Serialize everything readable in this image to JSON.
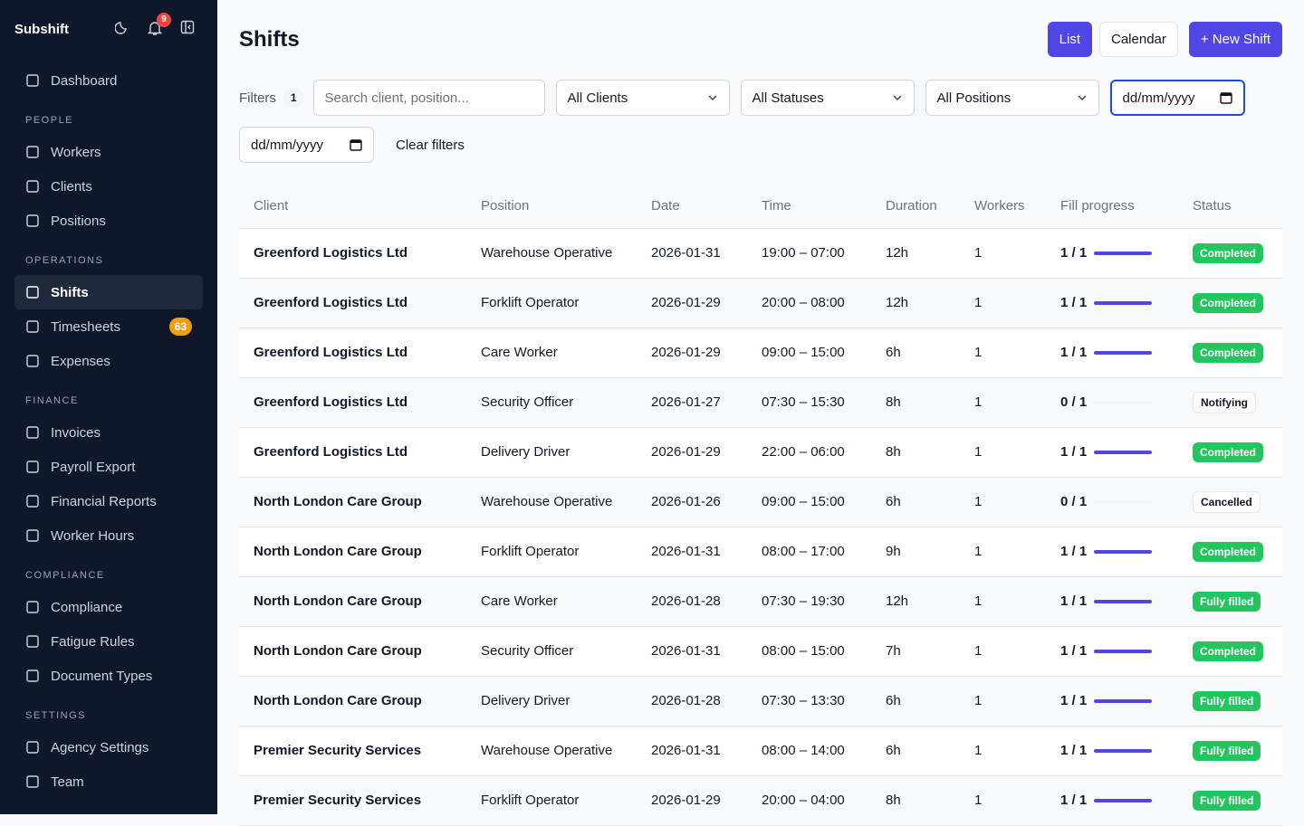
{
  "sidebar": {
    "brand": "Subshift",
    "notification_count": 9,
    "sections": [
      {
        "items": [
          {
            "label": "Dashboard"
          }
        ]
      },
      {
        "title": "PEOPLE",
        "items": [
          {
            "label": "Workers"
          },
          {
            "label": "Clients"
          },
          {
            "label": "Positions"
          }
        ]
      },
      {
        "title": "OPERATIONS",
        "items": [
          {
            "label": "Shifts",
            "active": true
          },
          {
            "label": "Timesheets",
            "badge": 63
          },
          {
            "label": "Expenses"
          }
        ]
      },
      {
        "title": "FINANCE",
        "items": [
          {
            "label": "Invoices"
          },
          {
            "label": "Payroll Export"
          },
          {
            "label": "Financial Reports"
          },
          {
            "label": "Worker Hours"
          }
        ]
      },
      {
        "title": "COMPLIANCE",
        "items": [
          {
            "label": "Compliance"
          },
          {
            "label": "Fatigue Rules"
          },
          {
            "label": "Document Types"
          }
        ]
      },
      {
        "title": "SETTINGS",
        "items": [
          {
            "label": "Agency Settings"
          },
          {
            "label": "Team"
          }
        ]
      }
    ]
  },
  "header": {
    "title": "Shifts",
    "buttons": [
      "List",
      "Calendar",
      "+ New Shift"
    ]
  },
  "filters": {
    "label": "Filters",
    "count": 1,
    "search_placeholder": "Search client, position...",
    "selects": [
      "All Clients",
      "All Statuses",
      "All Positions"
    ],
    "date_from": "dd/mm/yyyy",
    "date_to": "dd/mm/yyyy",
    "clear": "Clear filters"
  },
  "table": {
    "columns": [
      "Client",
      "Position",
      "Date",
      "Time",
      "Duration",
      "Workers",
      "Fill progress",
      "Status"
    ],
    "rows": [
      [
        "Greenford Logistics Ltd",
        "Warehouse Operative",
        "2026-01-31",
        "19:00 – 07:00",
        "12h",
        1,
        "1 / 1",
        "Completed"
      ],
      [
        "Greenford Logistics Ltd",
        "Forklift Operator",
        "2026-01-29",
        "20:00 – 08:00",
        "12h",
        1,
        "1 / 1",
        "Completed"
      ],
      [
        "Greenford Logistics Ltd",
        "Care Worker",
        "2026-01-29",
        "09:00 – 15:00",
        "6h",
        1,
        "1 / 1",
        "Completed"
      ],
      [
        "Greenford Logistics Ltd",
        "Security Officer",
        "2026-01-27",
        "07:30 – 15:30",
        "8h",
        1,
        "0 / 1",
        "Notifying"
      ],
      [
        "Greenford Logistics Ltd",
        "Delivery Driver",
        "2026-01-29",
        "22:00 – 06:00",
        "8h",
        1,
        "1 / 1",
        "Completed"
      ],
      [
        "North London Care Group",
        "Warehouse Operative",
        "2026-01-26",
        "09:00 – 15:00",
        "6h",
        1,
        "0 / 1",
        "Cancelled"
      ],
      [
        "North London Care Group",
        "Forklift Operator",
        "2026-01-31",
        "08:00 – 17:00",
        "9h",
        1,
        "1 / 1",
        "Completed"
      ],
      [
        "North London Care Group",
        "Care Worker",
        "2026-01-28",
        "07:30 – 19:30",
        "12h",
        1,
        "1 / 1",
        "Fully filled"
      ],
      [
        "North London Care Group",
        "Security Officer",
        "2026-01-31",
        "08:00 – 15:00",
        "7h",
        1,
        "1 / 1",
        "Completed"
      ],
      [
        "North London Care Group",
        "Delivery Driver",
        "2026-01-28",
        "07:30 – 13:30",
        "6h",
        1,
        "1 / 1",
        "Fully filled"
      ],
      [
        "Premier Security Services",
        "Warehouse Operative",
        "2026-01-31",
        "08:00 – 14:00",
        "6h",
        1,
        "1 / 1",
        "Fully filled"
      ],
      [
        "Premier Security Services",
        "Forklift Operator",
        "2026-01-29",
        "20:00 – 04:00",
        "8h",
        1,
        "1 / 1",
        "Fully filled"
      ]
    ]
  }
}
